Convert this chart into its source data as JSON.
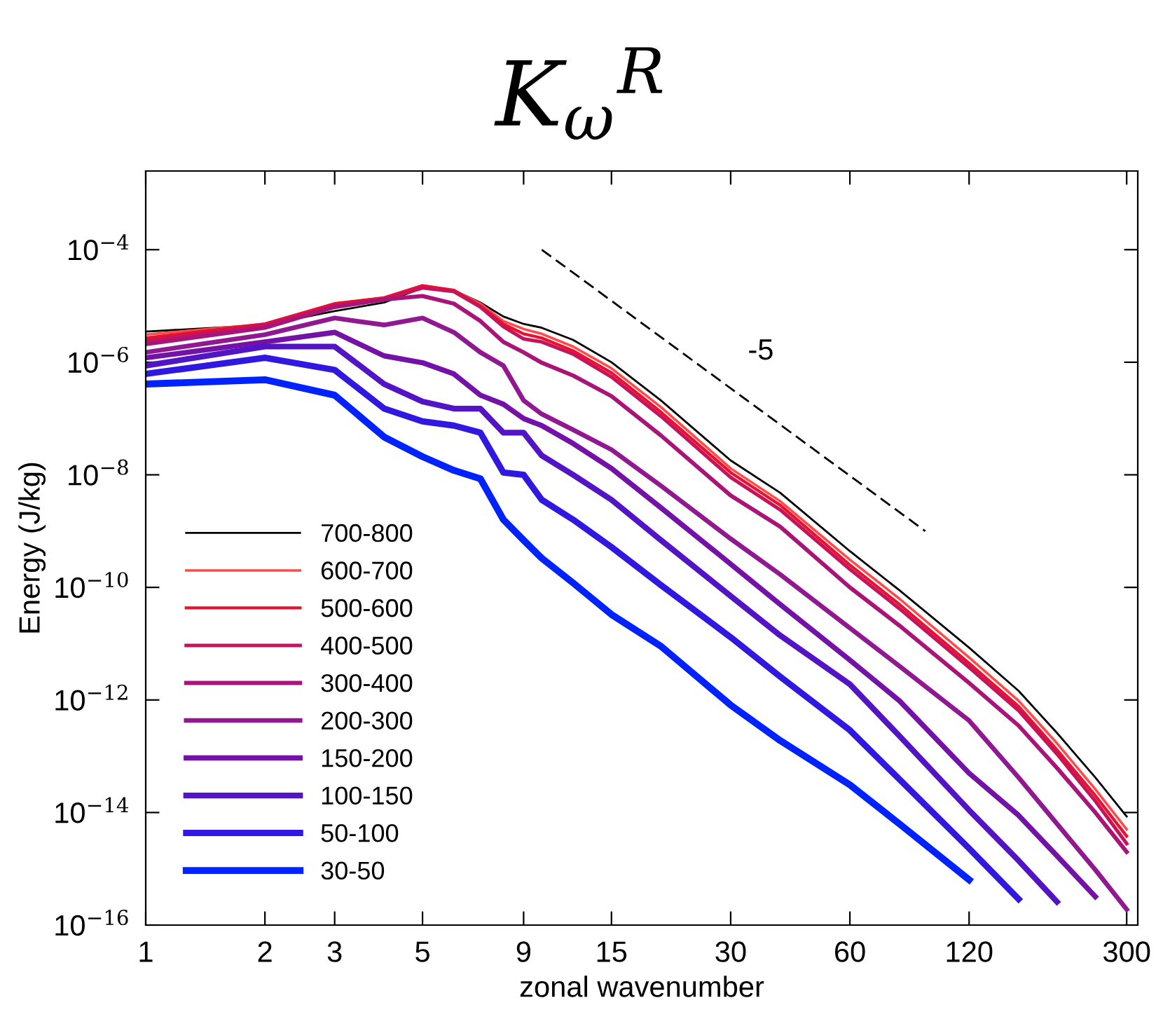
{
  "chart_data": {
    "type": "line",
    "title": "K$_{ω}$$^{R}$",
    "xlabel": "zonal wavenumber",
    "ylabel": "Energy (J/kg)",
    "log": "xy",
    "legend": "bottom left",
    "grid": false,
    "x": [
      1,
      2,
      3,
      4,
      5,
      6,
      7,
      8,
      9,
      10,
      12,
      15,
      20,
      30,
      40,
      60,
      80,
      120,
      160,
      200,
      250,
      300
    ],
    "xlim": [
      1,
      320
    ],
    "xticks": [
      1,
      2,
      3,
      5,
      9,
      15,
      30,
      60,
      120,
      300
    ],
    "ylim": [
      1e-16,
      0.0025
    ],
    "yticks": [
      {
        "value": 1e-16,
        "label": "10$^{−16}$"
      },
      {
        "value": 1e-14,
        "label": "10$^{−14}$"
      },
      {
        "value": 1e-12,
        "label": "10$^{−12}$"
      },
      {
        "value": 1e-10,
        "label": "10$^{−10}$"
      },
      {
        "value": 1e-08,
        "label": "10$^{−8}$"
      },
      {
        "value": 1e-06,
        "label": "10$^{−6}$"
      },
      {
        "value": 0.0001,
        "label": "10$^{−4}$"
      }
    ],
    "series": [
      {
        "name": "700-800",
        "color": "#000000",
        "values": [
          3.5e-06,
          4.6e-06,
          8.1e-06,
          1.15e-05,
          2.1e-05,
          1.9e-05,
          1.15e-05,
          6.5e-06,
          4.8e-06,
          4.1e-06,
          2.5e-06,
          1e-06,
          2.1e-07,
          1.8e-08,
          4.8e-09,
          4.4e-10,
          8.9e-11,
          8.5e-12,
          1.45e-12,
          2.6e-13,
          4.2e-14,
          8.5e-15
        ]
      },
      {
        "name": "600-700",
        "color": "#ff4a4a",
        "values": [
          3.1e-06,
          4.8e-06,
          1.1e-05,
          1.4e-05,
          2.3e-05,
          1.9e-05,
          1.1e-05,
          5.4e-06,
          3.9e-06,
          3.2e-06,
          1.9e-06,
          7.8e-07,
          1.6e-07,
          1.3e-08,
          3.4e-09,
          3.1e-10,
          6.3e-11,
          5.7e-12,
          9.7e-13,
          1.7e-13,
          2.6e-14,
          5e-15
        ]
      },
      {
        "name": "500-600",
        "color": "#e8122e",
        "values": [
          2.7e-06,
          4.8e-06,
          1.1e-05,
          1.4e-05,
          2.3e-05,
          1.9e-05,
          1e-05,
          4.8e-06,
          3.2e-06,
          2.7e-06,
          1.6e-06,
          6.5e-07,
          1.3e-07,
          1.1e-08,
          2.9e-09,
          2.5e-10,
          5e-11,
          4.5e-12,
          7.7e-13,
          1.3e-13,
          2e-14,
          3.8e-15
        ]
      },
      {
        "name": "400-500",
        "color": "#c8125a",
        "values": [
          2.4e-06,
          4.6e-06,
          1e-05,
          1.3e-05,
          2.1e-05,
          1.8e-05,
          9.6e-06,
          4.3e-06,
          2.6e-06,
          2.3e-06,
          1.4e-06,
          5.5e-07,
          1.1e-07,
          9e-09,
          2.4e-09,
          2.1e-10,
          4.2e-11,
          3.8e-12,
          6.5e-13,
          1.1e-13,
          1.6e-14,
          2.8e-15
        ]
      },
      {
        "name": "300-400",
        "color": "#a81478",
        "values": [
          2.1e-06,
          4.1e-06,
          9.6e-06,
          1.3e-05,
          1.5e-05,
          1.1e-05,
          5.4e-06,
          2.3e-06,
          1.5e-06,
          9.8e-07,
          5.8e-07,
          2.5e-07,
          5e-08,
          4.3e-09,
          1.2e-09,
          1e-10,
          2.1e-11,
          2e-12,
          3.5e-13,
          6.2e-14,
          1e-14,
          2e-15
        ]
      },
      {
        "name": "200-300",
        "color": "#901890",
        "values": [
          1.5e-06,
          3.1e-06,
          6.1e-06,
          4.6e-06,
          6.1e-06,
          3.4e-06,
          1.5e-06,
          8.7e-07,
          2.1e-07,
          1.2e-07,
          6.3e-08,
          2.8e-08,
          6.4e-09,
          7.3e-10,
          1.7e-10,
          1.9e-11,
          4e-12,
          4.3e-13,
          4.2e-14,
          6.3e-15,
          9.6e-16,
          1.9e-16
        ]
      },
      {
        "name": "150-200",
        "color": "#7412a8",
        "values": [
          1.2e-06,
          2.3e-06,
          3.4e-06,
          1.3e-06,
          9.8e-07,
          6.2e-07,
          2.6e-07,
          1.8e-07,
          1e-07,
          7.5e-08,
          3.6e-08,
          1.3e-08,
          2.6e-09,
          2.6e-10,
          5e-11,
          5.1e-12,
          9.7e-13,
          5e-14,
          8.9e-15,
          1.7e-15,
          3.2e-16,
          null
        ]
      },
      {
        "name": "100-150",
        "color": "#5214c4",
        "values": [
          8.7e-07,
          1.9e-06,
          1.9e-06,
          4.1e-07,
          2e-07,
          1.5e-07,
          1.5e-07,
          5.6e-08,
          5.6e-08,
          2.2e-08,
          1e-08,
          3.6e-09,
          6.9e-10,
          7e-11,
          1.4e-11,
          1.9e-12,
          2.3e-13,
          1.1e-14,
          1.4e-15,
          2.6e-16,
          null,
          null
        ]
      },
      {
        "name": "50-100",
        "color": "#3018e0",
        "values": [
          6.2e-07,
          1.2e-06,
          7.3e-07,
          1.5e-07,
          8.9e-08,
          7.5e-08,
          5.6e-08,
          1.1e-08,
          1e-08,
          3.6e-09,
          1.6e-09,
          5.2e-10,
          1.1e-10,
          1.3e-11,
          2.6e-12,
          2.9e-13,
          3.9e-14,
          2.3e-15,
          2.9e-16,
          null,
          null,
          null
        ]
      },
      {
        "name": "30-50",
        "color": "#0022ff",
        "values": [
          4.1e-07,
          4.9e-07,
          2.6e-07,
          4.7e-08,
          2.1e-08,
          1.2e-08,
          8.5e-09,
          1.6e-09,
          6.9e-10,
          3.3e-10,
          1.2e-10,
          3.3e-11,
          9e-12,
          8.1e-13,
          1.9e-13,
          3.1e-14,
          6.3e-15,
          6.4e-16,
          null,
          null,
          null,
          null
        ]
      },
      {
        "type": "line",
        "color": "#000000",
        "line_style": "dashed",
        "x": [
          10,
          93
        ],
        "values": [
          0.0001,
          1e-09
        ]
      }
    ],
    "annotations": [
      "-5"
    ]
  }
}
